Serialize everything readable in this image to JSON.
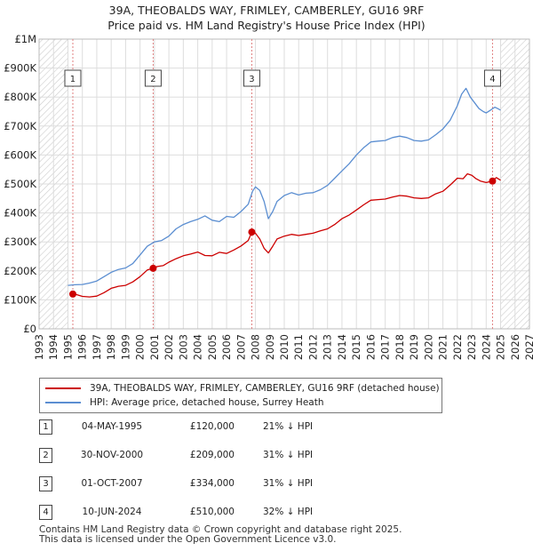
{
  "chart_data": {
    "type": "line",
    "title": "39A, THEOBALDS WAY, FRIMLEY, CAMBERLEY, GU16 9RF",
    "subtitle": "Price paid vs. HM Land Registry's House Price Index (HPI)",
    "xlabel": "",
    "ylabel": "",
    "xlim": [
      1993,
      2027
    ],
    "ylim": [
      0,
      1000000
    ],
    "x_ticks": [
      "1993",
      "1994",
      "1995",
      "1996",
      "1997",
      "1998",
      "1999",
      "2000",
      "2001",
      "2002",
      "2003",
      "2004",
      "2005",
      "2006",
      "2007",
      "2008",
      "2009",
      "2010",
      "2011",
      "2012",
      "2013",
      "2014",
      "2015",
      "2016",
      "2017",
      "2018",
      "2019",
      "2020",
      "2021",
      "2022",
      "2023",
      "2024",
      "2025",
      "2026",
      "2027"
    ],
    "y_ticks": [
      {
        "value": 0,
        "label": "£0"
      },
      {
        "value": 100000,
        "label": "£100K"
      },
      {
        "value": 200000,
        "label": "£200K"
      },
      {
        "value": 300000,
        "label": "£300K"
      },
      {
        "value": 400000,
        "label": "£400K"
      },
      {
        "value": 500000,
        "label": "£500K"
      },
      {
        "value": 600000,
        "label": "£600K"
      },
      {
        "value": 700000,
        "label": "£700K"
      },
      {
        "value": 800000,
        "label": "£800K"
      },
      {
        "value": 900000,
        "label": "£900K"
      },
      {
        "value": 1000000,
        "label": "£1M"
      }
    ],
    "grid": true,
    "hatched_ranges": [
      [
        1993,
        1995.0
      ],
      [
        2025.0,
        2027
      ]
    ],
    "series": [
      {
        "name": "39A, THEOBALDS WAY, FRIMLEY, CAMBERLEY, GU16 9RF (detached house)",
        "color": "#cc0000",
        "x": [
          1995.34,
          1995.6,
          1996.0,
          1996.5,
          1997.0,
          1997.5,
          1998.0,
          1998.5,
          1999.0,
          1999.5,
          2000.0,
          2000.5,
          2000.91,
          2001.2,
          2001.6,
          2002.0,
          2002.5,
          2003.0,
          2003.5,
          2004.0,
          2004.5,
          2005.0,
          2005.5,
          2006.0,
          2006.5,
          2007.0,
          2007.5,
          2007.75,
          2008.0,
          2008.3,
          2008.6,
          2008.9,
          2009.2,
          2009.5,
          2010.0,
          2010.5,
          2011.0,
          2011.5,
          2012.0,
          2012.5,
          2013.0,
          2013.5,
          2014.0,
          2014.5,
          2015.0,
          2015.5,
          2016.0,
          2016.5,
          2017.0,
          2017.5,
          2018.0,
          2018.5,
          2019.0,
          2019.5,
          2020.0,
          2020.5,
          2021.0,
          2021.5,
          2022.0,
          2022.4,
          2022.7,
          2023.0,
          2023.3,
          2023.6,
          2024.0,
          2024.44,
          2024.7,
          2025.0
        ],
        "y": [
          120000,
          118000,
          112000,
          110000,
          113000,
          125000,
          140000,
          147000,
          150000,
          162000,
          180000,
          203000,
          209000,
          215000,
          218000,
          230000,
          242000,
          252000,
          258000,
          265000,
          253000,
          252000,
          264000,
          260000,
          272000,
          286000,
          305000,
          334000,
          330000,
          310000,
          278000,
          262000,
          285000,
          310000,
          320000,
          326000,
          322000,
          326000,
          330000,
          338000,
          345000,
          360000,
          380000,
          393000,
          410000,
          428000,
          444000,
          446000,
          448000,
          455000,
          460000,
          458000,
          452000,
          450000,
          452000,
          466000,
          475000,
          496000,
          520000,
          518000,
          535000,
          530000,
          518000,
          510000,
          505000,
          510000,
          522000,
          513000
        ]
      },
      {
        "name": "HPI: Average price, detached house, Surrey Heath",
        "color": "#5b8ed1",
        "x": [
          1995.0,
          1995.5,
          1996.0,
          1996.5,
          1997.0,
          1997.5,
          1998.0,
          1998.5,
          1999.0,
          1999.5,
          2000.0,
          2000.5,
          2001.0,
          2001.5,
          2002.0,
          2002.5,
          2003.0,
          2003.5,
          2004.0,
          2004.5,
          2005.0,
          2005.5,
          2006.0,
          2006.5,
          2007.0,
          2007.5,
          2007.8,
          2008.0,
          2008.3,
          2008.6,
          2008.9,
          2009.2,
          2009.5,
          2010.0,
          2010.5,
          2011.0,
          2011.5,
          2012.0,
          2012.5,
          2013.0,
          2013.5,
          2014.0,
          2014.5,
          2015.0,
          2015.5,
          2016.0,
          2016.5,
          2017.0,
          2017.5,
          2018.0,
          2018.5,
          2019.0,
          2019.5,
          2020.0,
          2020.5,
          2021.0,
          2021.5,
          2022.0,
          2022.3,
          2022.6,
          2022.9,
          2023.2,
          2023.5,
          2023.8,
          2024.0,
          2024.3,
          2024.6,
          2024.8,
          2025.0
        ],
        "y": [
          150000,
          152000,
          153000,
          158000,
          165000,
          180000,
          195000,
          205000,
          210000,
          225000,
          255000,
          285000,
          300000,
          305000,
          320000,
          345000,
          360000,
          370000,
          378000,
          390000,
          375000,
          370000,
          388000,
          385000,
          405000,
          430000,
          475000,
          490000,
          478000,
          440000,
          380000,
          405000,
          440000,
          460000,
          470000,
          462000,
          468000,
          470000,
          480000,
          495000,
          520000,
          545000,
          570000,
          600000,
          625000,
          645000,
          648000,
          650000,
          660000,
          665000,
          660000,
          650000,
          648000,
          652000,
          670000,
          690000,
          720000,
          770000,
          810000,
          830000,
          800000,
          780000,
          760000,
          750000,
          745000,
          755000,
          765000,
          760000,
          755000
        ]
      }
    ],
    "sales": [
      {
        "id": "1",
        "x": 1995.34,
        "y": 120000,
        "date": "04-MAY-1995",
        "price": "£120,000",
        "hpi": "21% ↓ HPI"
      },
      {
        "id": "2",
        "x": 2000.91,
        "y": 209000,
        "date": "30-NOV-2000",
        "price": "£209,000",
        "hpi": "31% ↓ HPI"
      },
      {
        "id": "3",
        "x": 2007.75,
        "y": 334000,
        "date": "01-OCT-2007",
        "price": "£334,000",
        "hpi": "31% ↓ HPI"
      },
      {
        "id": "4",
        "x": 2024.44,
        "y": 510000,
        "date": "10-JUN-2024",
        "price": "£510,000",
        "hpi": "32% ↓ HPI"
      }
    ]
  },
  "legend": {
    "property_label": "39A, THEOBALDS WAY, FRIMLEY, CAMBERLEY, GU16 9RF (detached house)",
    "hpi_label": "HPI: Average price, detached house, Surrey Heath"
  },
  "footer": {
    "line1": "Contains HM Land Registry data © Crown copyright and database right 2025.",
    "line2": "This data is licensed under the Open Government Licence v3.0."
  },
  "colors": {
    "property": "#cc0000",
    "hpi": "#5b8ed1",
    "grid": "#dddddd",
    "sale_line": "#e08080",
    "sale_box_border": "#444444",
    "hatch": "#cccccc"
  }
}
